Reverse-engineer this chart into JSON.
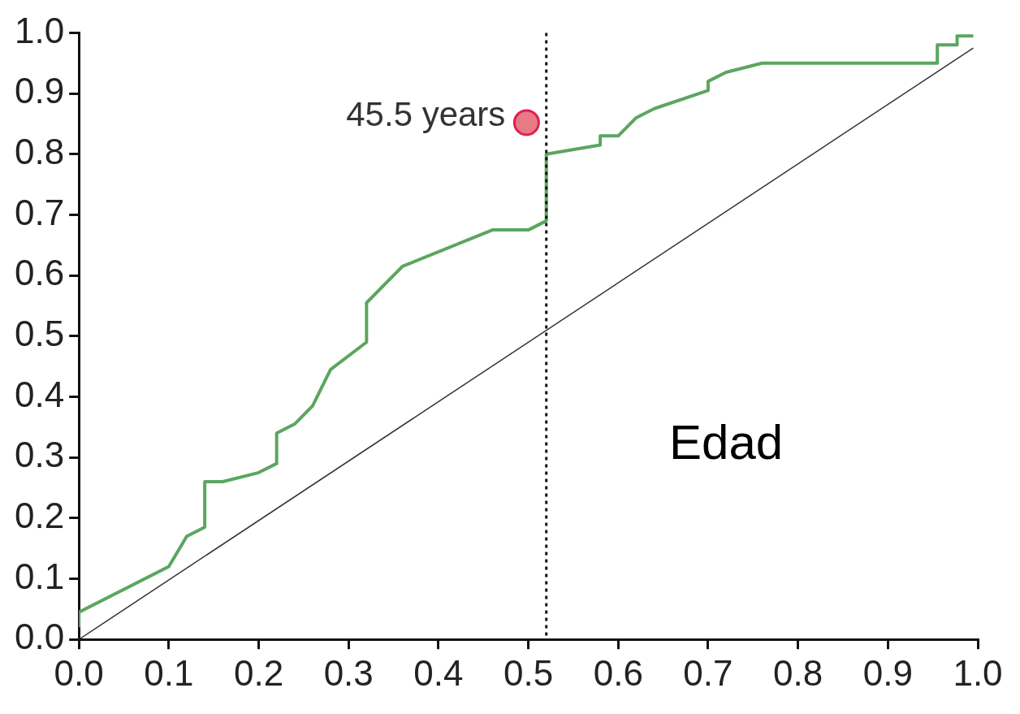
{
  "chart_data": {
    "type": "line",
    "xlim": [
      0,
      1
    ],
    "ylim": [
      0,
      1
    ],
    "xticks": [
      {
        "value": 0,
        "label": "0.0"
      },
      {
        "value": 0.1,
        "label": "0.1"
      },
      {
        "value": 0.2,
        "label": "0.2"
      },
      {
        "value": 0.3,
        "label": "0.3"
      },
      {
        "value": 0.4,
        "label": "0.4"
      },
      {
        "value": 0.5,
        "label": "0.5"
      },
      {
        "value": 0.6,
        "label": "0.6"
      },
      {
        "value": 0.7,
        "label": "0.7"
      },
      {
        "value": 0.8,
        "label": "0.8"
      },
      {
        "value": 0.9,
        "label": "0.9"
      },
      {
        "value": 1,
        "label": "1.0"
      }
    ],
    "yticks": [
      {
        "value": 0,
        "label": "0.0"
      },
      {
        "value": 0.1,
        "label": "0.1"
      },
      {
        "value": 0.2,
        "label": "0.2"
      },
      {
        "value": 0.3,
        "label": "0.3"
      },
      {
        "value": 0.4,
        "label": "0.4"
      },
      {
        "value": 0.5,
        "label": "0.5"
      },
      {
        "value": 0.6,
        "label": "0.6"
      },
      {
        "value": 0.7,
        "label": "0.7"
      },
      {
        "value": 0.8,
        "label": "0.8"
      },
      {
        "value": 0.9,
        "label": "0.9"
      },
      {
        "value": 1,
        "label": "1.0"
      }
    ],
    "grid": false,
    "legend": false,
    "series": [
      {
        "type": "line",
        "color": "#5ba65f",
        "marker": "none",
        "x": [
          0,
          0,
          0.1,
          0.12,
          0.14,
          0.14,
          0.16,
          0.2,
          0.22,
          0.22,
          0.24,
          0.26,
          0.28,
          0.32,
          0.32,
          0.36,
          0.46,
          0.5,
          0.52,
          0.52,
          0.58,
          0.58,
          0.6,
          0.62,
          0.64,
          0.7,
          0.7,
          0.72,
          0.76,
          0.955,
          0.955,
          0.977,
          0.977,
          0.995
        ],
        "values": [
          0.02,
          0.045,
          0.12,
          0.17,
          0.185,
          0.26,
          0.26,
          0.275,
          0.29,
          0.34,
          0.355,
          0.385,
          0.445,
          0.49,
          0.555,
          0.615,
          0.675,
          0.675,
          0.69,
          0.8,
          0.815,
          0.83,
          0.83,
          0.86,
          0.875,
          0.905,
          0.92,
          0.935,
          0.95,
          0.95,
          0.98,
          0.98,
          0.995,
          0.995
        ]
      },
      {
        "type": "line",
        "color": "#333333",
        "marker": "none",
        "x": [
          0,
          0.995
        ],
        "values": [
          0,
          0.975
        ]
      },
      {
        "type": "scatter",
        "color": "#e77a85",
        "marker": "circle",
        "x": [
          0.498
        ],
        "values": [
          0.852
        ]
      }
    ],
    "ref_lines": [
      {
        "axis": "x",
        "value": 0.52,
        "color": "#111111",
        "line_style": "dotted"
      }
    ],
    "annotations": [
      {
        "text": "45.5 years",
        "x": 0.498,
        "y": 0.852
      },
      "Edad"
    ]
  }
}
